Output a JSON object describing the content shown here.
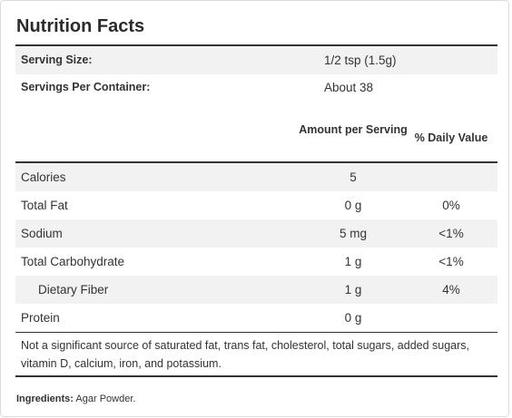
{
  "title": "Nutrition Facts",
  "serving": {
    "size_label": "Serving Size:",
    "size_value": "1/2 tsp (1.5g)",
    "per_container_label": "Servings Per Container:",
    "per_container_value": "About 38"
  },
  "header": {
    "amount": "Amount per Serving",
    "daily_value": "% Daily Value"
  },
  "rows": [
    {
      "label": "Calories",
      "amount": "5",
      "dv": ""
    },
    {
      "label": "Total Fat",
      "amount": "0 g",
      "dv": "0%"
    },
    {
      "label": "Sodium",
      "amount": "5 mg",
      "dv": "<1%"
    },
    {
      "label": "Total Carbohydrate",
      "amount": "1 g",
      "dv": "<1%"
    },
    {
      "label": "Dietary Fiber",
      "amount": "1 g",
      "dv": "4%"
    },
    {
      "label": "Protein",
      "amount": "0 g",
      "dv": ""
    }
  ],
  "footnote": "Not a significant source of saturated fat, trans fat, cholesterol, total sugars, added sugars, vitamin D, calcium, iron, and potassium.",
  "ingredients": {
    "label": "Ingredients:",
    "value": "Agar Powder."
  }
}
